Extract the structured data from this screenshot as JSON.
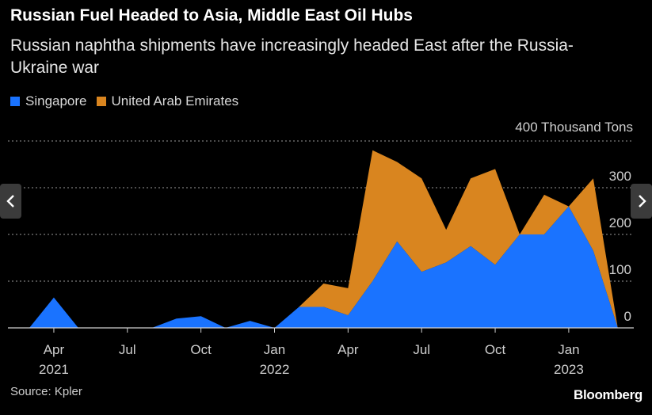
{
  "header": {
    "title": "Russian Fuel Headed to Asia, Middle East Oil Hubs",
    "subtitle": "Russian naphtha shipments have increasingly headed East after the Russia-Ukraine war"
  },
  "legend": [
    {
      "label": "Singapore",
      "color": "#1a73ff"
    },
    {
      "label": "United Arab Emirates",
      "color": "#d9851f"
    }
  ],
  "footer": {
    "source": "Source: Kpler",
    "brand": "Bloomberg"
  },
  "navigation": {
    "prev_icon": "chevron-left-icon",
    "next_icon": "chevron-right-icon"
  },
  "chart_data": {
    "type": "area",
    "stacked": true,
    "unit_label": "400 Thousand Tons",
    "ylim": [
      0,
      400
    ],
    "yticks": [
      0,
      100,
      200,
      300
    ],
    "grid": true,
    "legend_position": "top-left",
    "x": [
      "2021-03",
      "2021-04",
      "2021-05",
      "2021-06",
      "2021-07",
      "2021-08",
      "2021-09",
      "2021-10",
      "2021-11",
      "2021-12",
      "2022-01",
      "2022-02",
      "2022-03",
      "2022-04",
      "2022-05",
      "2022-06",
      "2022-07",
      "2022-08",
      "2022-09",
      "2022-10",
      "2022-11",
      "2022-12",
      "2023-01",
      "2023-02",
      "2023-03"
    ],
    "x_tick_labels": [
      {
        "date": "2021-04",
        "label": "Apr",
        "year": "2021"
      },
      {
        "date": "2021-07",
        "label": "Jul",
        "year": ""
      },
      {
        "date": "2021-10",
        "label": "Oct",
        "year": ""
      },
      {
        "date": "2022-01",
        "label": "Jan",
        "year": "2022"
      },
      {
        "date": "2022-04",
        "label": "Apr",
        "year": ""
      },
      {
        "date": "2022-07",
        "label": "Jul",
        "year": ""
      },
      {
        "date": "2022-10",
        "label": "Oct",
        "year": ""
      },
      {
        "date": "2023-01",
        "label": "Jan",
        "year": "2023"
      }
    ],
    "series": [
      {
        "name": "Singapore",
        "color": "#1a73ff",
        "values": [
          0,
          65,
          0,
          0,
          0,
          0,
          20,
          25,
          0,
          15,
          0,
          45,
          45,
          27,
          100,
          185,
          120,
          140,
          175,
          135,
          200,
          200,
          260,
          165,
          0
        ]
      },
      {
        "name": "United Arab Emirates",
        "color": "#d9851f",
        "values": [
          0,
          0,
          0,
          0,
          0,
          0,
          0,
          0,
          0,
          0,
          0,
          0,
          50,
          58,
          280,
          170,
          200,
          70,
          145,
          205,
          0,
          85,
          0,
          155,
          0
        ]
      }
    ]
  }
}
